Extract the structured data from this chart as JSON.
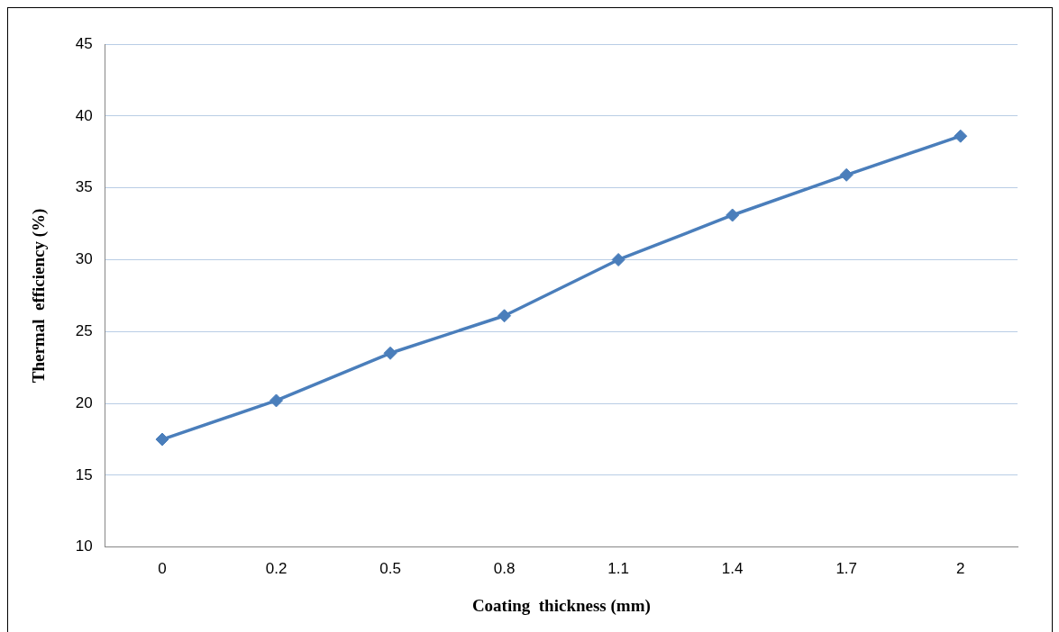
{
  "chart_data": {
    "type": "line",
    "xlabel": "Coating  thickness (mm)",
    "ylabel": "Thermal  efficiency (%)",
    "categories": [
      "0",
      "0.2",
      "0.5",
      "0.8",
      "1.1",
      "1.4",
      "1.7",
      "2"
    ],
    "series": [
      {
        "color": "#4a7ebb",
        "values": [
          17.5,
          20.2,
          23.5,
          26.1,
          30.0,
          33.1,
          35.9,
          38.6
        ]
      }
    ],
    "ylim": [
      10,
      45
    ],
    "yticks": [
      10,
      15,
      20,
      25,
      30,
      35,
      40,
      45
    ],
    "grid": "y",
    "legend": false,
    "marker": "diamond",
    "line_style": "solid"
  }
}
